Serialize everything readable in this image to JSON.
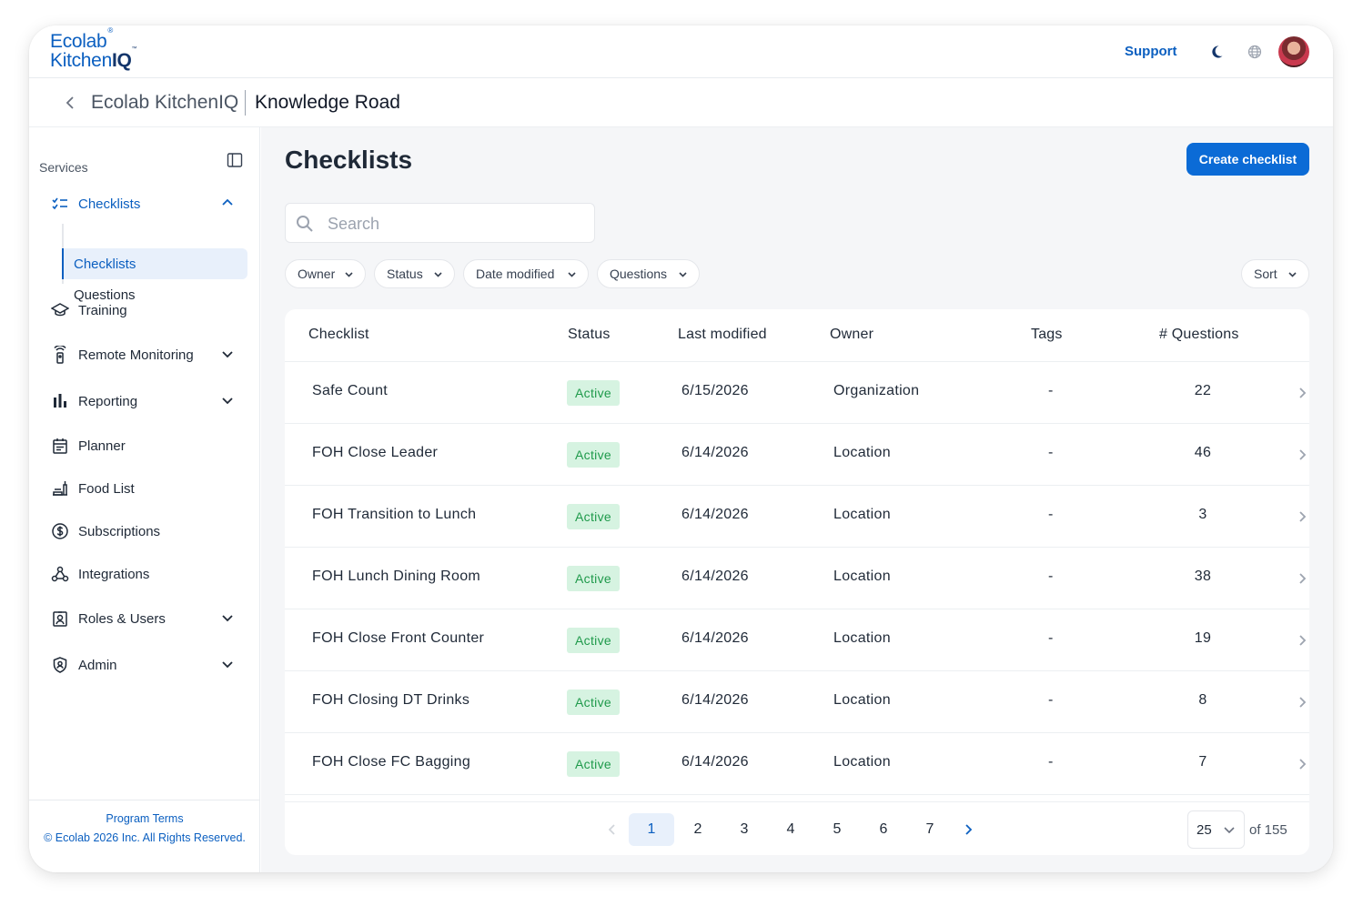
{
  "brand": {
    "line1": "Ecolab",
    "line1_mark": "®",
    "line2_a": "Kitchen",
    "line2_b": "IQ",
    "line2_mark": "™"
  },
  "topbar": {
    "support_label": "Support",
    "icons": [
      "moon-icon",
      "globe-icon",
      "avatar"
    ]
  },
  "breadcrumb": {
    "parent": "Ecolab KitchenIQ",
    "current": "Knowledge Road"
  },
  "sidebar": {
    "section_label": "Services",
    "items": [
      {
        "label": "Checklists",
        "icon": "checklist-icon",
        "expanded": true
      },
      {
        "label": "Training",
        "icon": "graduation-cap-icon"
      },
      {
        "label": "Remote Monitoring",
        "icon": "sensor-icon",
        "has_children": true
      },
      {
        "label": "Reporting",
        "icon": "bar-chart-icon",
        "has_children": true
      },
      {
        "label": "Planner",
        "icon": "calendar-icon"
      },
      {
        "label": "Food List",
        "icon": "food-tray-icon"
      },
      {
        "label": "Subscriptions",
        "icon": "dollar-circle-icon"
      },
      {
        "label": "Integrations",
        "icon": "webhook-icon"
      },
      {
        "label": "Roles & Users",
        "icon": "id-badge-icon",
        "has_children": true
      },
      {
        "label": "Admin",
        "icon": "shield-icon",
        "has_children": true
      }
    ],
    "sub_items": [
      {
        "label": "Checklists",
        "active": true
      },
      {
        "label": "Questions",
        "active": false
      }
    ],
    "footer": {
      "terms": "Program Terms",
      "copyright": "© Ecolab 2026 Inc. All Rights Reserved."
    }
  },
  "main": {
    "title": "Checklists",
    "create_label": "Create checklist",
    "search": {
      "placeholder": "Search",
      "value": ""
    },
    "filters": [
      "Owner",
      "Status",
      "Date modified",
      "Questions"
    ],
    "sort_label": "Sort",
    "table": {
      "columns": [
        "Checklist",
        "Status",
        "Last modified",
        "Owner",
        "Tags",
        "# Questions"
      ],
      "rows": [
        {
          "name": "Safe Count",
          "status": "Active",
          "modified": "6/15/2026",
          "owner": "Organization",
          "tags": "-",
          "questions": "22"
        },
        {
          "name": "FOH Close Leader",
          "status": "Active",
          "modified": "6/14/2026",
          "owner": "Location",
          "tags": "-",
          "questions": "46"
        },
        {
          "name": "FOH Transition to Lunch",
          "status": "Active",
          "modified": "6/14/2026",
          "owner": "Location",
          "tags": "-",
          "questions": "3"
        },
        {
          "name": "FOH Lunch Dining Room",
          "status": "Active",
          "modified": "6/14/2026",
          "owner": "Location",
          "tags": "-",
          "questions": "38"
        },
        {
          "name": "FOH Close Front Counter",
          "status": "Active",
          "modified": "6/14/2026",
          "owner": "Location",
          "tags": "-",
          "questions": "19"
        },
        {
          "name": "FOH Closing DT Drinks",
          "status": "Active",
          "modified": "6/14/2026",
          "owner": "Location",
          "tags": "-",
          "questions": "8"
        },
        {
          "name": "FOH Close FC Bagging",
          "status": "Active",
          "modified": "6/14/2026",
          "owner": "Location",
          "tags": "-",
          "questions": "7"
        }
      ]
    },
    "pagination": {
      "pages": [
        "1",
        "2",
        "3",
        "4",
        "5",
        "6",
        "7"
      ],
      "current": "1",
      "per_page": "25",
      "total_label": "of 155"
    }
  },
  "colors": {
    "accent": "#0b6bd6",
    "brand_dark": "#13356b",
    "active_badge_bg": "#d6f3e1",
    "active_badge_text": "#1f9a4b"
  }
}
